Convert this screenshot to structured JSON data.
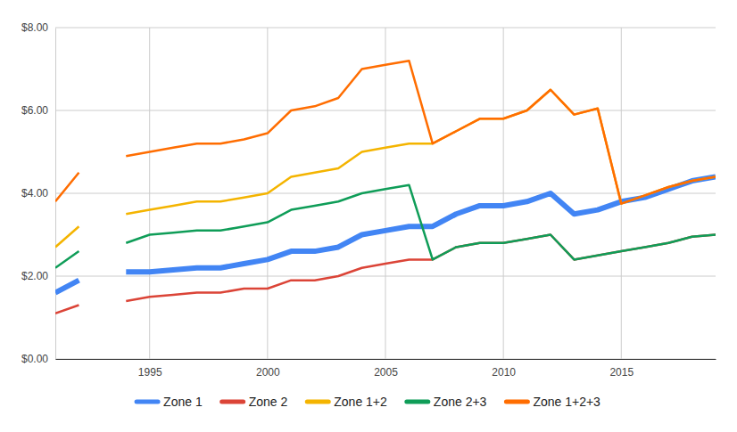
{
  "chart_data": {
    "type": "line",
    "x": [
      1991,
      1992,
      1993,
      1994,
      1995,
      1996,
      1997,
      1998,
      1999,
      2000,
      2001,
      2002,
      2003,
      2004,
      2005,
      2006,
      2007,
      2008,
      2009,
      2010,
      2011,
      2012,
      2013,
      2014,
      2015,
      2016,
      2017,
      2018,
      2019
    ],
    "series": [
      {
        "name": "Zone 1",
        "color": "#4285f4",
        "values": [
          1.6,
          1.9,
          null,
          2.1,
          2.1,
          2.15,
          2.2,
          2.2,
          2.3,
          2.4,
          2.6,
          2.6,
          2.7,
          3.0,
          3.1,
          3.2,
          3.2,
          3.5,
          3.7,
          3.7,
          3.8,
          4.0,
          3.5,
          3.6,
          3.8,
          3.9,
          4.1,
          4.3,
          4.4
        ]
      },
      {
        "name": "Zone 2",
        "color": "#db4437",
        "values": [
          1.1,
          1.3,
          null,
          1.4,
          1.5,
          1.55,
          1.6,
          1.6,
          1.7,
          1.7,
          1.9,
          1.9,
          2.0,
          2.2,
          2.3,
          2.4,
          2.4,
          2.7,
          2.8,
          2.8,
          2.9,
          3.0,
          2.4,
          2.5,
          2.6,
          2.7,
          2.8,
          2.95,
          3.0
        ]
      },
      {
        "name": "Zone 1+2",
        "color": "#f4b400",
        "values": [
          2.7,
          3.2,
          null,
          3.5,
          3.6,
          3.7,
          3.8,
          3.8,
          3.9,
          4.0,
          4.4,
          4.5,
          4.6,
          5.0,
          5.1,
          5.2,
          5.2,
          5.5,
          5.8,
          5.8,
          6.0,
          6.5,
          5.9,
          6.05,
          3.75,
          3.95,
          4.15,
          4.3,
          4.4
        ]
      },
      {
        "name": "Zone 2+3",
        "color": "#0f9d58",
        "values": [
          2.2,
          2.6,
          null,
          2.8,
          3.0,
          3.05,
          3.1,
          3.1,
          3.2,
          3.3,
          3.6,
          3.7,
          3.8,
          4.0,
          4.1,
          4.2,
          2.4,
          2.7,
          2.8,
          2.8,
          2.9,
          3.0,
          2.4,
          2.5,
          2.6,
          2.7,
          2.8,
          2.95,
          3.0
        ]
      },
      {
        "name": "Zone 1+2+3",
        "color": "#ff6d01",
        "values": [
          3.8,
          4.5,
          null,
          4.9,
          5.0,
          5.1,
          5.2,
          5.2,
          5.3,
          5.45,
          6.0,
          6.1,
          6.3,
          7.0,
          7.1,
          7.2,
          5.2,
          5.5,
          5.8,
          5.8,
          6.0,
          6.5,
          5.9,
          6.05,
          3.75,
          3.95,
          4.15,
          4.3,
          4.4
        ]
      }
    ],
    "xlim": [
      1991,
      2019
    ],
    "xticks": [
      1995,
      2000,
      2005,
      2010,
      2015
    ],
    "ylim": [
      0,
      8
    ],
    "yticks": [
      {
        "value": 0,
        "label": "$0.00"
      },
      {
        "value": 2,
        "label": "$2.00"
      },
      {
        "value": 4,
        "label": "$4.00"
      },
      {
        "value": 6,
        "label": "$6.00"
      },
      {
        "value": 8,
        "label": "$8.00"
      }
    ],
    "grid": true,
    "legend": "bottom"
  }
}
